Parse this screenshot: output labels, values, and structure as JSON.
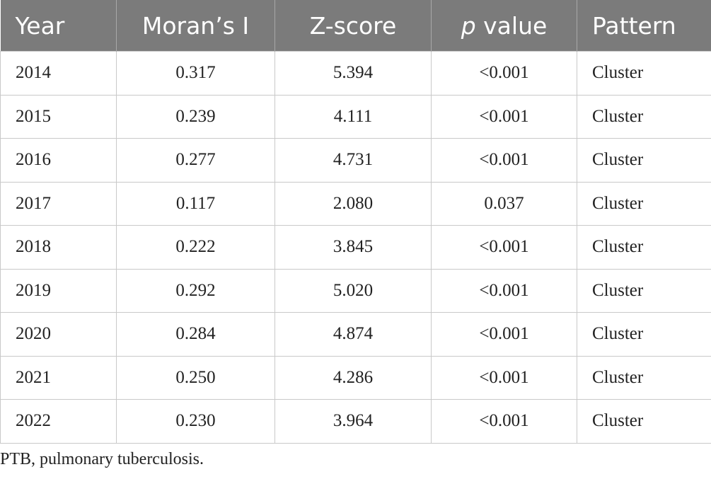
{
  "table": {
    "headers": {
      "year": "Year",
      "morans_i": "Moran’s I",
      "z_score": "Z-score",
      "p_value_italic": "p",
      "p_value_rest": " value",
      "pattern": "Pattern"
    },
    "rows": [
      {
        "year": "2014",
        "morans_i": "0.317",
        "z_score": "5.394",
        "p_value": "<0.001",
        "pattern": "Cluster"
      },
      {
        "year": "2015",
        "morans_i": "0.239",
        "z_score": "4.111",
        "p_value": "<0.001",
        "pattern": "Cluster"
      },
      {
        "year": "2016",
        "morans_i": "0.277",
        "z_score": "4.731",
        "p_value": "<0.001",
        "pattern": "Cluster"
      },
      {
        "year": "2017",
        "morans_i": "0.117",
        "z_score": "2.080",
        "p_value": "0.037",
        "pattern": "Cluster"
      },
      {
        "year": "2018",
        "morans_i": "0.222",
        "z_score": "3.845",
        "p_value": "<0.001",
        "pattern": "Cluster"
      },
      {
        "year": "2019",
        "morans_i": "0.292",
        "z_score": "5.020",
        "p_value": "<0.001",
        "pattern": "Cluster"
      },
      {
        "year": "2020",
        "morans_i": "0.284",
        "z_score": "4.874",
        "p_value": "<0.001",
        "pattern": "Cluster"
      },
      {
        "year": "2021",
        "morans_i": "0.250",
        "z_score": "4.286",
        "p_value": "<0.001",
        "pattern": "Cluster"
      },
      {
        "year": "2022",
        "morans_i": "0.230",
        "z_score": "3.964",
        "p_value": "<0.001",
        "pattern": "Cluster"
      }
    ]
  },
  "footnote": "PTB, pulmonary tuberculosis.",
  "colors": {
    "header_background": "#7b7b7b",
    "header_text": "#ffffff",
    "grid_line": "#c9c9c9",
    "body_text": "#222222"
  }
}
